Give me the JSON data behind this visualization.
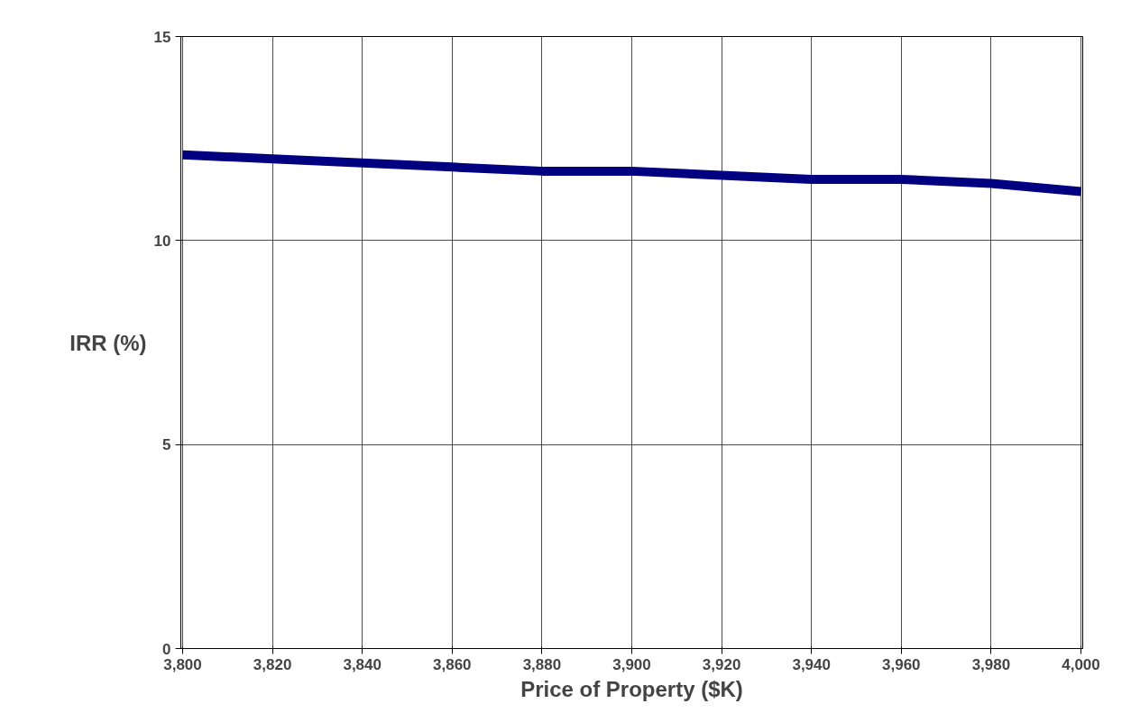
{
  "chart_data": {
    "type": "line",
    "xlabel": "Price of Property ($K)",
    "ylabel": "IRR (%)",
    "categories": [
      "3,800",
      "3,820",
      "3,840",
      "3,860",
      "3,880",
      "3,900",
      "3,920",
      "3,940",
      "3,960",
      "3,980",
      "4,000"
    ],
    "series": [
      {
        "color": "#000080",
        "values": [
          12.1,
          12.0,
          11.9,
          11.8,
          11.7,
          11.7,
          11.6,
          11.5,
          11.5,
          11.4,
          11.2
        ]
      }
    ],
    "ylim": [
      0,
      15
    ],
    "yticks": [
      0,
      5,
      10,
      15
    ],
    "grid": true,
    "marker": "none",
    "line_style": "solid"
  }
}
